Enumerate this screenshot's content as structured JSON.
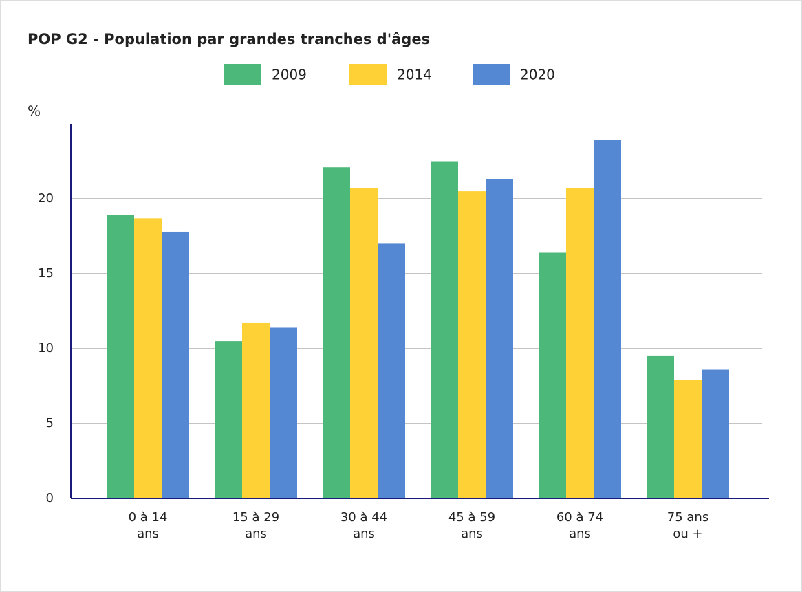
{
  "chart_data": {
    "type": "bar",
    "title": "POP G2 - Population par grandes tranches d'âges",
    "y_label": "%",
    "categories": [
      "0 à 14 ans",
      "15 à 29 ans",
      "30 à 44 ans",
      "45 à 59 ans",
      "60 à 74 ans",
      "75 ans ou +"
    ],
    "series": [
      {
        "name": "2009",
        "color": "#4cb87a",
        "values": [
          18.9,
          10.5,
          22.1,
          22.5,
          16.4,
          9.5
        ]
      },
      {
        "name": "2014",
        "color": "#fed136",
        "values": [
          18.7,
          11.7,
          20.7,
          20.5,
          20.7,
          7.9
        ]
      },
      {
        "name": "2020",
        "color": "#5588d3",
        "values": [
          17.8,
          11.4,
          17.0,
          21.3,
          23.9,
          8.6
        ]
      }
    ],
    "ylim": [
      0,
      25
    ],
    "yticks": [
      0,
      5,
      10,
      15,
      20
    ],
    "grid": true,
    "legend": "top"
  }
}
